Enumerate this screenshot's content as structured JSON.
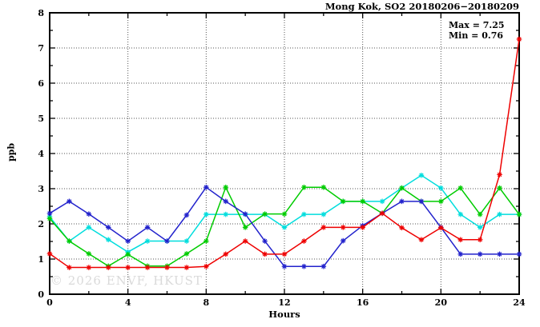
{
  "watermark": {
    "text": "© 2026 ENVF, HKUST",
    "color": "#dadada"
  },
  "chart_data": {
    "type": "line",
    "title": "Mong Kok, SO2 20180206−20180209",
    "xlabel": "Hours",
    "ylabel": "ppb",
    "xlim": [
      0,
      24
    ],
    "ylim": [
      0,
      8
    ],
    "xticks": [
      0,
      4,
      8,
      12,
      16,
      20,
      24
    ],
    "yticks": [
      0,
      1,
      2,
      3,
      4,
      5,
      6,
      7,
      8
    ],
    "grid": true,
    "legend": "none",
    "annotations": {
      "max": "Max = 7.25",
      "min": "Min = 0.76"
    },
    "max_value": 7.25,
    "min_value": 0.76,
    "colors": {
      "grid": "#555555",
      "axis": "#000000"
    },
    "x": [
      0,
      1,
      2,
      3,
      4,
      5,
      6,
      7,
      8,
      9,
      10,
      11,
      12,
      13,
      14,
      15,
      16,
      17,
      18,
      19,
      20,
      21,
      22,
      23,
      24
    ],
    "series": [
      {
        "name": "cyan",
        "color": "#00dddd",
        "values": [
          2.2,
          1.51,
          1.9,
          1.55,
          1.2,
          1.51,
          1.51,
          1.51,
          2.27,
          2.27,
          2.27,
          2.27,
          1.9,
          2.27,
          2.27,
          2.64,
          2.64,
          2.64,
          3.02,
          3.38,
          3.02,
          2.27,
          1.9,
          2.27,
          2.27
        ]
      },
      {
        "name": "green",
        "color": "#00cc00",
        "values": [
          2.15,
          1.51,
          1.15,
          0.8,
          1.13,
          0.8,
          0.8,
          1.15,
          1.51,
          3.04,
          1.9,
          2.28,
          2.28,
          3.04,
          3.04,
          2.64,
          2.64,
          2.3,
          3.02,
          2.64,
          2.64,
          3.02,
          2.27,
          3.02,
          2.27
        ]
      },
      {
        "name": "blue",
        "color": "#2222cc",
        "values": [
          2.3,
          2.64,
          2.28,
          1.9,
          1.51,
          1.9,
          1.51,
          2.25,
          3.04,
          2.64,
          2.28,
          1.51,
          0.79,
          0.79,
          0.79,
          1.52,
          1.95,
          2.3,
          2.64,
          2.64,
          1.9,
          1.14,
          1.14,
          1.14,
          1.14
        ]
      },
      {
        "name": "red",
        "color": "#ee0000",
        "values": [
          1.15,
          0.76,
          0.76,
          0.76,
          0.76,
          0.76,
          0.76,
          0.76,
          0.79,
          1.14,
          1.51,
          1.14,
          1.14,
          1.51,
          1.9,
          1.9,
          1.9,
          2.3,
          1.89,
          1.55,
          1.89,
          1.55,
          1.55,
          3.4,
          7.25
        ]
      }
    ]
  }
}
